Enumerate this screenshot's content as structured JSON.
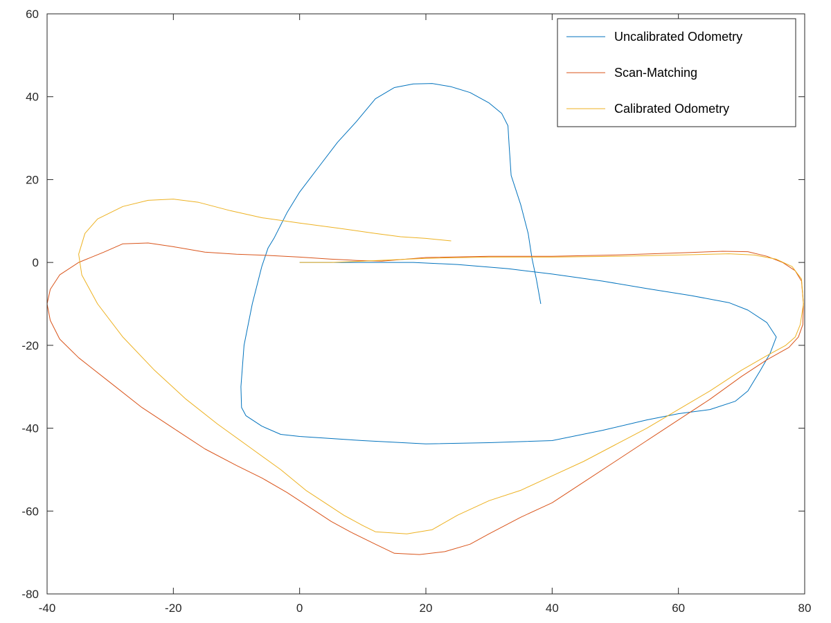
{
  "chart_data": {
    "type": "line",
    "title": "",
    "xlabel": "",
    "ylabel": "",
    "xlim": [
      -40,
      80
    ],
    "ylim": [
      -80,
      60
    ],
    "xticks": [
      "-40",
      "-20",
      "0",
      "20",
      "40",
      "60",
      "80"
    ],
    "yticks": [
      "60",
      "40",
      "20",
      "0",
      "-20",
      "-40",
      "-60",
      "-80"
    ],
    "grid": false,
    "legend_position": "top-right",
    "series": [
      {
        "name": "Uncalibrated Odometry",
        "color": "#0072BD",
        "points": [
          [
            0,
            0
          ],
          [
            10,
            0
          ],
          [
            18,
            0
          ],
          [
            25,
            -0.5
          ],
          [
            33,
            -1.5
          ],
          [
            40,
            -2.8
          ],
          [
            48,
            -4.5
          ],
          [
            55,
            -6.3
          ],
          [
            62,
            -8
          ],
          [
            68,
            -9.7
          ],
          [
            71,
            -11.5
          ],
          [
            74,
            -14.5
          ],
          [
            75.5,
            -18
          ],
          [
            74.5,
            -22
          ],
          [
            73,
            -26
          ],
          [
            71,
            -31
          ],
          [
            69,
            -33.5
          ],
          [
            65,
            -35.5
          ],
          [
            60,
            -36.5
          ],
          [
            55,
            -38
          ],
          [
            48,
            -40.5
          ],
          [
            40,
            -43
          ],
          [
            30,
            -43.5
          ],
          [
            20,
            -43.8
          ],
          [
            10,
            -43
          ],
          [
            0,
            -42
          ],
          [
            -3,
            -41.5
          ],
          [
            -6,
            -39.5
          ],
          [
            -8.5,
            -37
          ],
          [
            -9.2,
            -35
          ],
          [
            -9.3,
            -30
          ],
          [
            -8.8,
            -20
          ],
          [
            -7.5,
            -10
          ],
          [
            -6,
            -1
          ],
          [
            -5,
            3.5
          ],
          [
            -4,
            6
          ],
          [
            -2,
            12
          ],
          [
            0,
            17
          ],
          [
            3,
            23
          ],
          [
            6,
            29
          ],
          [
            9,
            34
          ],
          [
            12,
            39.5
          ],
          [
            15,
            42.2
          ],
          [
            18,
            43.1
          ],
          [
            21,
            43.2
          ],
          [
            24,
            42.4
          ],
          [
            27,
            41
          ],
          [
            30,
            38.5
          ],
          [
            32,
            36
          ],
          [
            33,
            33
          ],
          [
            33.2,
            28
          ],
          [
            33.5,
            21
          ],
          [
            35,
            14
          ],
          [
            36.2,
            7
          ],
          [
            36.8,
            1
          ],
          [
            37.5,
            -4
          ],
          [
            38.2,
            -10
          ]
        ]
      },
      {
        "name": "Scan-Matching",
        "color": "#D95319",
        "points": [
          [
            13,
            0.3
          ],
          [
            20,
            1.2
          ],
          [
            30,
            1.5
          ],
          [
            40,
            1.5
          ],
          [
            50,
            1.8
          ],
          [
            60,
            2.3
          ],
          [
            67,
            2.7
          ],
          [
            71,
            2.6
          ],
          [
            74,
            1.5
          ],
          [
            76.5,
            0
          ],
          [
            78.5,
            -2
          ],
          [
            79.5,
            -4.5
          ],
          [
            79.8,
            -10
          ],
          [
            79.7,
            -15
          ],
          [
            79,
            -18
          ],
          [
            77.5,
            -20.5
          ],
          [
            74,
            -23.5
          ],
          [
            70,
            -27.5
          ],
          [
            65,
            -33
          ],
          [
            60,
            -38
          ],
          [
            55,
            -43
          ],
          [
            50,
            -48
          ],
          [
            45,
            -53
          ],
          [
            40,
            -58
          ],
          [
            35,
            -61.5
          ],
          [
            30,
            -65.5
          ],
          [
            27,
            -68
          ],
          [
            23,
            -69.8
          ],
          [
            19,
            -70.5
          ],
          [
            15,
            -70.2
          ],
          [
            12,
            -68
          ],
          [
            8,
            -65
          ],
          [
            5,
            -62.5
          ],
          [
            2,
            -59.5
          ],
          [
            -2,
            -55.5
          ],
          [
            -6,
            -52
          ],
          [
            -10,
            -49
          ],
          [
            -15,
            -45
          ],
          [
            -20,
            -40
          ],
          [
            -25,
            -35
          ],
          [
            -30,
            -29
          ],
          [
            -35,
            -23
          ],
          [
            -38,
            -18.5
          ],
          [
            -39.5,
            -14
          ],
          [
            -40,
            -10
          ],
          [
            -39.5,
            -6.5
          ],
          [
            -38,
            -3
          ],
          [
            -35,
            0
          ],
          [
            -31,
            2.5
          ],
          [
            -28,
            4.5
          ],
          [
            -24,
            4.7
          ],
          [
            -20,
            3.8
          ],
          [
            -15,
            2.5
          ],
          [
            -10,
            2
          ],
          [
            -5,
            1.7
          ],
          [
            0,
            1.3
          ],
          [
            5,
            0.8
          ],
          [
            9,
            0.5
          ],
          [
            13,
            0.3
          ]
        ]
      },
      {
        "name": "Calibrated Odometry",
        "color": "#EDB120",
        "points": [
          [
            0,
            0
          ],
          [
            5,
            0
          ],
          [
            10,
            0.3
          ],
          [
            20,
            1
          ],
          [
            30,
            1.3
          ],
          [
            40,
            1.3
          ],
          [
            50,
            1.5
          ],
          [
            60,
            1.8
          ],
          [
            68,
            2.1
          ],
          [
            72,
            1.8
          ],
          [
            75.5,
            0.8
          ],
          [
            78,
            -1
          ],
          [
            79.5,
            -4
          ],
          [
            79.8,
            -10
          ],
          [
            79.3,
            -15
          ],
          [
            78.5,
            -18
          ],
          [
            77,
            -20
          ],
          [
            74,
            -22.5
          ],
          [
            70,
            -26
          ],
          [
            65,
            -31
          ],
          [
            60,
            -35.5
          ],
          [
            55,
            -40
          ],
          [
            50,
            -44
          ],
          [
            45,
            -48
          ],
          [
            40,
            -51.5
          ],
          [
            35,
            -55
          ],
          [
            30,
            -57.5
          ],
          [
            25,
            -61
          ],
          [
            21,
            -64.5
          ],
          [
            17,
            -65.5
          ],
          [
            12,
            -65
          ],
          [
            10,
            -63.5
          ],
          [
            7,
            -61
          ],
          [
            4,
            -58
          ],
          [
            1,
            -55
          ],
          [
            -3,
            -50
          ],
          [
            -8,
            -44.5
          ],
          [
            -13,
            -39
          ],
          [
            -18,
            -33
          ],
          [
            -23,
            -26
          ],
          [
            -28,
            -18
          ],
          [
            -32,
            -10
          ],
          [
            -34.5,
            -3
          ],
          [
            -35,
            2
          ],
          [
            -34,
            7
          ],
          [
            -32,
            10.5
          ],
          [
            -28,
            13.5
          ],
          [
            -24,
            15
          ],
          [
            -20,
            15.3
          ],
          [
            -16,
            14.5
          ],
          [
            -11,
            12.5
          ],
          [
            -6,
            10.8
          ],
          [
            0,
            9.5
          ],
          [
            6,
            8.3
          ],
          [
            12,
            7
          ],
          [
            16,
            6.2
          ],
          [
            20,
            5.8
          ],
          [
            24,
            5.2
          ]
        ]
      }
    ]
  }
}
